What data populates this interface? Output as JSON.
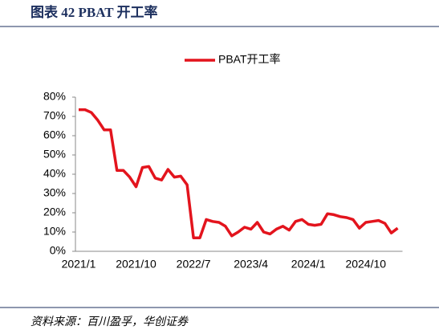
{
  "chart_data": {
    "type": "line",
    "title": "图表 42 PBAT 开工率",
    "source": "资料来源：百川盈孚，华创证券",
    "categories": [
      "2021/1",
      null,
      null,
      null,
      null,
      null,
      null,
      null,
      null,
      "2021/10",
      null,
      null,
      null,
      null,
      null,
      null,
      null,
      null,
      "2022/7",
      null,
      null,
      null,
      null,
      null,
      null,
      null,
      null,
      "2023/4",
      null,
      null,
      null,
      null,
      null,
      null,
      null,
      null,
      "2024/1",
      null,
      null,
      null,
      null,
      null,
      null,
      null,
      null,
      "2024/10",
      null,
      null,
      null,
      null,
      null
    ],
    "series": [
      {
        "name": "PBAT开工率",
        "color": "#e3141d",
        "values": [
          73.5,
          73.5,
          72,
          68,
          63,
          63,
          42,
          42,
          38.5,
          33.5,
          43.5,
          44,
          38,
          37,
          42.5,
          38.5,
          39,
          34.5,
          7,
          7,
          16.5,
          15.5,
          15,
          13,
          8,
          10,
          12.5,
          11.5,
          15,
          10,
          9,
          11.5,
          13,
          11,
          15.5,
          16.5,
          14,
          13.5,
          14,
          19.5,
          19,
          18,
          17.5,
          16.5,
          12,
          15,
          15.5,
          16,
          14.5,
          9.5,
          12
        ]
      }
    ],
    "ylim": [
      0,
      80
    ],
    "yticks": [
      {
        "value": 0,
        "label": "0%"
      },
      {
        "value": 10,
        "label": "10%"
      },
      {
        "value": 20,
        "label": "20%"
      },
      {
        "value": 30,
        "label": "30%"
      },
      {
        "value": 40,
        "label": "40%"
      },
      {
        "value": 50,
        "label": "50%"
      },
      {
        "value": 60,
        "label": "60%"
      },
      {
        "value": 70,
        "label": "70%"
      },
      {
        "value": 80,
        "label": "80%"
      }
    ],
    "legend": "top"
  }
}
